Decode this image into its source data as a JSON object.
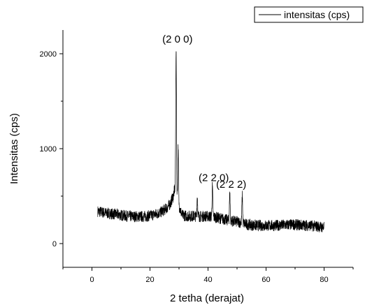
{
  "chart_data": {
    "type": "line",
    "xlabel": "2 tetha (derajat)",
    "ylabel": "Intensitas (cps)",
    "xlim": [
      -10,
      90
    ],
    "ylim": [
      -250,
      2250
    ],
    "x_ticks": [
      0,
      20,
      40,
      60,
      80
    ],
    "y_ticks": [
      0,
      1000,
      2000
    ],
    "x_tick_labels": [
      "0",
      "20",
      "40",
      "60",
      "80"
    ],
    "y_tick_labels": [
      "0",
      "1000",
      "2000"
    ],
    "legend": {
      "position": "top-right",
      "entries": [
        "intensitas (cps)"
      ]
    },
    "grid": false,
    "series": [
      {
        "name": "intensitas (cps)",
        "color": "#000000",
        "baseline": [
          [
            2,
            340
          ],
          [
            5,
            320
          ],
          [
            8,
            310
          ],
          [
            10,
            300
          ],
          [
            12,
            290
          ],
          [
            14,
            285
          ],
          [
            16,
            285
          ],
          [
            18,
            285
          ],
          [
            20,
            295
          ],
          [
            22,
            310
          ],
          [
            24,
            335
          ],
          [
            26,
            380
          ],
          [
            27,
            420
          ],
          [
            28,
            500
          ],
          [
            28.7,
            600
          ],
          [
            30,
            400
          ],
          [
            31,
            300
          ],
          [
            33,
            290
          ],
          [
            35,
            290
          ],
          [
            37,
            285
          ],
          [
            39,
            290
          ],
          [
            41,
            285
          ],
          [
            43,
            275
          ],
          [
            45,
            260
          ],
          [
            47,
            245
          ],
          [
            49,
            235
          ],
          [
            51,
            225
          ],
          [
            53,
            205
          ],
          [
            55,
            195
          ],
          [
            57,
            190
          ],
          [
            60,
            190
          ],
          [
            63,
            190
          ],
          [
            66,
            195
          ],
          [
            69,
            200
          ],
          [
            72,
            195
          ],
          [
            75,
            190
          ],
          [
            78,
            180
          ],
          [
            80,
            170
          ]
        ],
        "peaks": [
          {
            "x": 29.0,
            "y": 2060,
            "label": "(2 0 0)"
          },
          {
            "x": 29.7,
            "y": 1010
          },
          {
            "x": 36.3,
            "y": 500
          },
          {
            "x": 41.5,
            "y": 600,
            "label": "(2 2 0)"
          },
          {
            "x": 47.5,
            "y": 530,
            "label": "(2 2 2)"
          },
          {
            "x": 51.8,
            "y": 500
          }
        ],
        "noise_amplitude": 60
      }
    ]
  }
}
